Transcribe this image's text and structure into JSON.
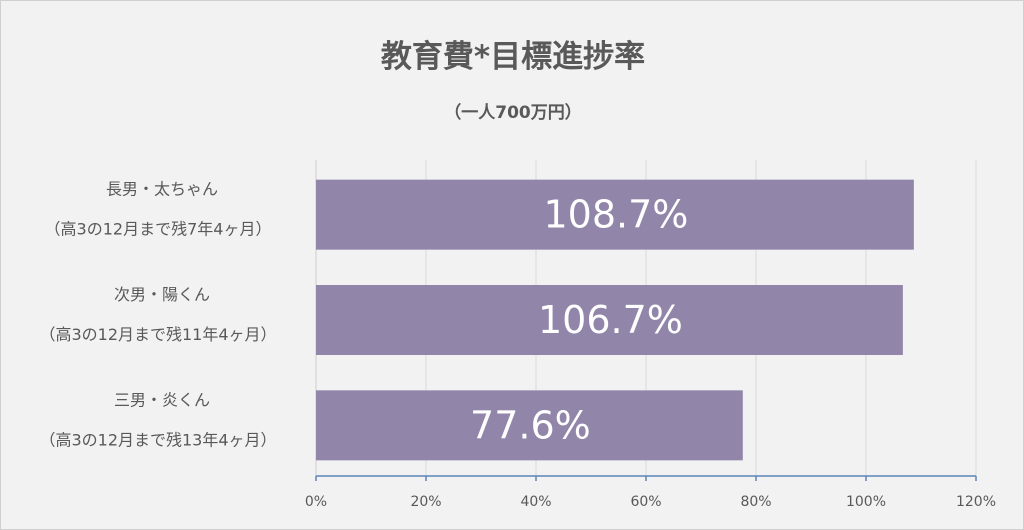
{
  "chart_data": {
    "type": "bar",
    "orientation": "horizontal",
    "title": "教育費*目標進捗率",
    "subtitle": "（一人700万円）",
    "categories": [
      {
        "line1": "長男・太ちゃん",
        "line2": "（高3の12月まで残7年4ヶ月）"
      },
      {
        "line1": "次男・陽くん",
        "line2": "（高3の12月まで残11年4ヶ月）"
      },
      {
        "line1": "三男・炎くん",
        "line2": "（高3の12月まで残13年4ヶ月）"
      }
    ],
    "values": [
      108.7,
      106.7,
      77.6
    ],
    "data_labels": [
      "108.7%",
      "106.7%",
      "77.6%"
    ],
    "xlim": [
      0,
      120
    ],
    "x_ticks": [
      "0%",
      "20%",
      "40%",
      "60%",
      "80%",
      "100%",
      "120%"
    ],
    "grid": true,
    "bar_color": "#9186aa",
    "axis_color": "#5b84b8",
    "grid_color": "#d9d9d9"
  }
}
